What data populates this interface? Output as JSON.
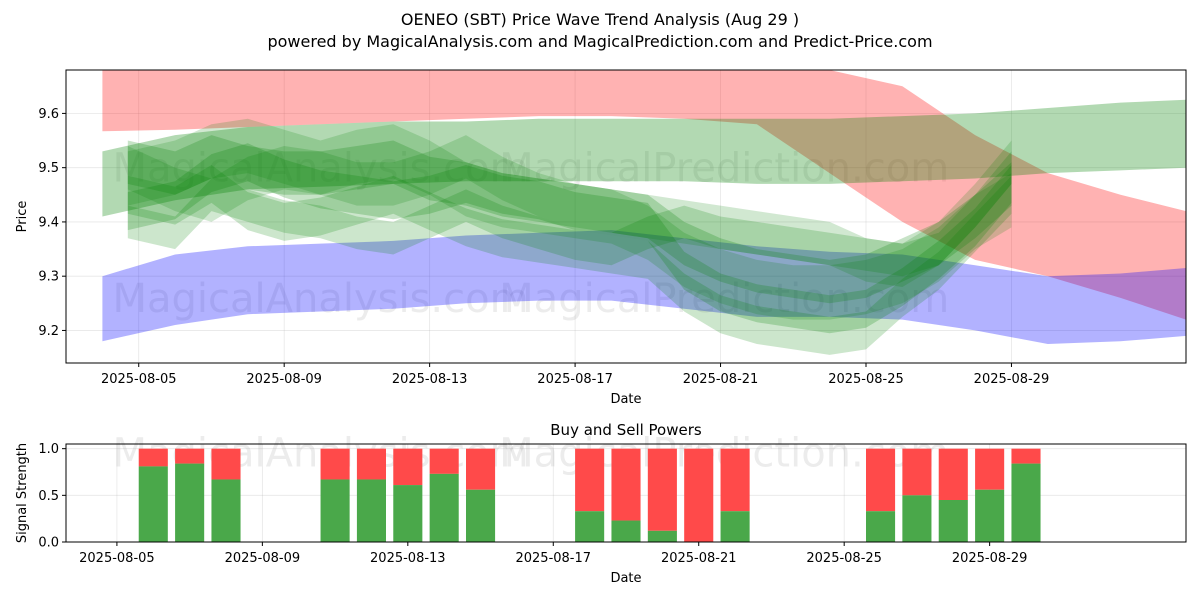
{
  "chart_data": [
    {
      "type": "area",
      "title_line1": "OENEO (SBT) Price Wave Trend Analysis (Aug 29 )",
      "title_line2": "powered by MagicalAnalysis.com and MagicalPrediction.com and Predict-Price.com",
      "xlabel": "Date",
      "ylabel": "Price",
      "ylim": [
        9.14,
        9.68
      ],
      "xlim_days": [
        3.0,
        33.8
      ],
      "x_ticks": [
        {
          "day": 5,
          "label": "2025-08-05"
        },
        {
          "day": 9,
          "label": "2025-08-09"
        },
        {
          "day": 13,
          "label": "2025-08-13"
        },
        {
          "day": 17,
          "label": "2025-08-17"
        },
        {
          "day": 21,
          "label": "2025-08-21"
        },
        {
          "day": 25,
          "label": "2025-08-25"
        },
        {
          "day": 29,
          "label": "2025-08-29"
        }
      ],
      "y_ticks": [
        9.2,
        9.3,
        9.4,
        9.5,
        9.6
      ],
      "grid": true,
      "watermarks": [
        "MagicalAnalysis.com",
        "MagicalPrediction.com"
      ],
      "bands": [
        {
          "name": "red-band",
          "color": "#ff0000",
          "opacity": 0.3,
          "x": [
            4,
            6,
            8,
            10,
            12,
            14,
            16,
            18,
            20,
            22,
            24,
            26,
            28,
            30,
            32,
            33.8
          ],
          "lower": [
            9.567,
            9.57,
            9.575,
            9.58,
            9.585,
            9.59,
            9.595,
            9.595,
            9.59,
            9.58,
            9.49,
            9.4,
            9.33,
            9.3,
            9.26,
            9.22
          ],
          "upper": [
            9.68,
            9.68,
            9.68,
            9.68,
            9.68,
            9.68,
            9.68,
            9.68,
            9.68,
            9.68,
            9.68,
            9.65,
            9.56,
            9.49,
            9.45,
            9.42
          ]
        },
        {
          "name": "green-band",
          "color": "#008000",
          "opacity": 0.3,
          "x": [
            4,
            6,
            8,
            10,
            12,
            14,
            16,
            18,
            20,
            22,
            24,
            26,
            28,
            30,
            32,
            33.8
          ],
          "lower": [
            9.41,
            9.44,
            9.46,
            9.465,
            9.47,
            9.475,
            9.475,
            9.475,
            9.475,
            9.47,
            9.47,
            9.475,
            9.48,
            9.49,
            9.495,
            9.5
          ],
          "upper": [
            9.53,
            9.56,
            9.575,
            9.58,
            9.585,
            9.585,
            9.59,
            9.59,
            9.59,
            9.59,
            9.59,
            9.595,
            9.6,
            9.61,
            9.62,
            9.625
          ]
        },
        {
          "name": "blue-band",
          "color": "#0000ff",
          "opacity": 0.3,
          "x": [
            4,
            6,
            8,
            10,
            12,
            14,
            16,
            18,
            20,
            22,
            24,
            26,
            28,
            30,
            32,
            33.8
          ],
          "lower": [
            9.18,
            9.21,
            9.23,
            9.235,
            9.24,
            9.25,
            9.255,
            9.255,
            9.24,
            9.225,
            9.225,
            9.22,
            9.2,
            9.175,
            9.18,
            9.19
          ],
          "upper": [
            9.3,
            9.34,
            9.355,
            9.36,
            9.365,
            9.375,
            9.38,
            9.385,
            9.37,
            9.355,
            9.345,
            9.34,
            9.32,
            9.3,
            9.305,
            9.315
          ]
        }
      ],
      "waves": [
        {
          "name": "wave-1",
          "width": 0.04,
          "opacity": 0.22,
          "x": [
            4.7,
            6,
            7,
            8,
            9,
            10,
            11,
            12,
            13,
            14,
            15,
            16,
            17,
            18,
            19,
            20,
            21,
            22,
            23,
            24,
            25,
            26,
            27,
            28,
            29
          ],
          "y": [
            9.51,
            9.49,
            9.52,
            9.5,
            9.49,
            9.49,
            9.5,
            9.51,
            9.48,
            9.47,
            9.45,
            9.44,
            9.43,
            9.42,
            9.41,
            9.36,
            9.33,
            9.31,
            9.3,
            9.29,
            9.3,
            9.33,
            9.36,
            9.41,
            9.47
          ]
        },
        {
          "name": "wave-2",
          "width": 0.035,
          "opacity": 0.2,
          "x": [
            4.7,
            6,
            7,
            8,
            9,
            10,
            11,
            12,
            13,
            14,
            15,
            16,
            17,
            18,
            19,
            20,
            21,
            22,
            23,
            24,
            25,
            26,
            27,
            28,
            29
          ],
          "y": [
            9.45,
            9.43,
            9.47,
            9.42,
            9.4,
            9.41,
            9.43,
            9.45,
            9.42,
            9.39,
            9.37,
            9.36,
            9.35,
            9.34,
            9.33,
            9.27,
            9.23,
            9.21,
            9.2,
            9.19,
            9.2,
            9.26,
            9.31,
            9.38,
            9.45
          ]
        },
        {
          "name": "wave-3",
          "width": 0.05,
          "opacity": 0.18,
          "x": [
            4.7,
            6,
            7,
            8,
            9,
            10,
            11,
            12,
            13,
            14,
            15,
            16,
            17,
            18,
            19,
            20,
            21,
            22,
            23,
            24,
            25,
            26,
            27,
            28,
            29
          ],
          "y": [
            9.48,
            9.5,
            9.53,
            9.54,
            9.52,
            9.5,
            9.52,
            9.53,
            9.5,
            9.46,
            9.44,
            9.43,
            9.42,
            9.41,
            9.38,
            9.33,
            9.3,
            9.28,
            9.27,
            9.27,
            9.28,
            9.3,
            9.34,
            9.4,
            9.44
          ]
        },
        {
          "name": "wave-4",
          "width": 0.03,
          "opacity": 0.2,
          "x": [
            4.7,
            6,
            7,
            8,
            9,
            10,
            11,
            12,
            13,
            14,
            15,
            16,
            17,
            18,
            19,
            20,
            21,
            22,
            23,
            24,
            25,
            26,
            27,
            28,
            29
          ],
          "y": [
            9.4,
            9.38,
            9.45,
            9.43,
            9.41,
            9.4,
            9.38,
            9.37,
            9.4,
            9.43,
            9.4,
            9.38,
            9.36,
            9.35,
            9.38,
            9.4,
            9.38,
            9.37,
            9.36,
            9.35,
            9.34,
            9.33,
            9.35,
            9.42,
            9.5
          ]
        },
        {
          "name": "wave-5",
          "width": 0.04,
          "opacity": 0.18,
          "x": [
            4.7,
            6,
            7,
            8,
            9,
            10,
            11,
            12,
            13,
            14,
            15,
            16,
            17,
            18,
            19,
            20,
            21,
            22,
            23,
            24,
            25,
            26,
            27,
            28,
            29
          ],
          "y": [
            9.5,
            9.46,
            9.44,
            9.48,
            9.5,
            9.49,
            9.47,
            9.47,
            9.49,
            9.52,
            9.48,
            9.45,
            9.43,
            9.42,
            9.41,
            9.4,
            9.39,
            9.38,
            9.37,
            9.36,
            9.33,
            9.32,
            9.36,
            9.43,
            9.51
          ]
        },
        {
          "name": "wave-6",
          "width": 0.035,
          "opacity": 0.22,
          "x": [
            4.7,
            6,
            7,
            8,
            9,
            10,
            11,
            12,
            13,
            14,
            15,
            16,
            17,
            18,
            19,
            20,
            21,
            22,
            23,
            24,
            25,
            26,
            27,
            28,
            29
          ],
          "y": [
            9.42,
            9.44,
            9.49,
            9.51,
            9.48,
            9.46,
            9.45,
            9.44,
            9.45,
            9.47,
            9.45,
            9.44,
            9.42,
            9.41,
            9.4,
            9.31,
            9.27,
            9.25,
            9.24,
            9.23,
            9.24,
            9.28,
            9.33,
            9.39,
            9.47
          ]
        }
      ]
    },
    {
      "type": "bar",
      "title": "Buy and Sell Powers",
      "xlabel": "Date",
      "ylabel": "Signal Strength",
      "ylim": [
        0,
        1.05
      ],
      "xlim_days": [
        3.0,
        33.8
      ],
      "x_ticks": [
        {
          "day": 4.4,
          "label": "2025-08-05"
        },
        {
          "day": 8.4,
          "label": "2025-08-09"
        },
        {
          "day": 12.4,
          "label": "2025-08-13"
        },
        {
          "day": 16.4,
          "label": "2025-08-17"
        },
        {
          "day": 20.4,
          "label": "2025-08-21"
        },
        {
          "day": 24.4,
          "label": "2025-08-25"
        },
        {
          "day": 28.4,
          "label": "2025-08-29"
        }
      ],
      "y_ticks": [
        0.0,
        0.5,
        1.0
      ],
      "y_tick_labels": [
        "0.0",
        "0.5",
        "1.0"
      ],
      "grid": true,
      "buy_color": "#4aa84a",
      "sell_color": "#ff4a4a",
      "series": [
        {
          "name": "buy",
          "days": [
            5.4,
            6.4,
            7.4,
            10.4,
            11.4,
            12.4,
            13.4,
            14.4,
            17.4,
            18.4,
            19.4,
            20.4,
            21.4,
            25.4,
            26.4,
            27.4,
            28.4,
            29.4
          ],
          "values": [
            0.81,
            0.84,
            0.67,
            0.67,
            0.67,
            0.61,
            0.73,
            0.56,
            0.33,
            0.23,
            0.12,
            0.0,
            0.33,
            0.33,
            0.5,
            0.45,
            0.56,
            0.84
          ]
        }
      ]
    }
  ]
}
